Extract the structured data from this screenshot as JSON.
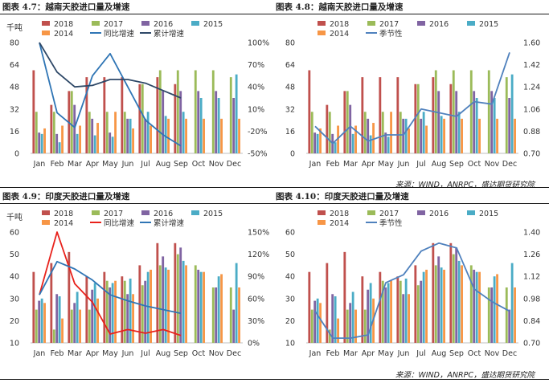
{
  "colors": {
    "y2018": "#c0504d",
    "y2017": "#9bbb59",
    "y2016": "#8064a2",
    "y2015": "#4bacc6",
    "y2014": "#f79646",
    "line_red": "#e8211b",
    "line_navy": "#2e4867",
    "line_blue": "#2f75b5",
    "seasonal": "#4f81bd"
  },
  "panels": {
    "p1": {
      "title": "图表 4.7：越南天胶进口量及增速"
    },
    "p2": {
      "title": "图表 4.8：越南天胶进口量及增速"
    },
    "p3": {
      "title": "图表 4.9：印度天胶进口量及增速"
    },
    "p4": {
      "title": "图表 4.10：印度天胶进口量及增速"
    }
  },
  "sources": {
    "top": "来源：WIND，ANRPC，盛达期货研究院",
    "bottom": "来源：WIND，ANRPC，盛达期货研究院"
  },
  "chart_data": [
    {
      "type": "bar",
      "ylabel": "千吨",
      "ylim": [
        0,
        80
      ],
      "yticks": [
        0,
        16,
        32,
        48,
        64,
        80
      ],
      "y2lim": [
        -50,
        100
      ],
      "y2ticks": [
        "-50%",
        "-20%",
        "10%",
        "40%",
        "70%",
        "100%"
      ],
      "categories": [
        "Jan",
        "Feb",
        "Mar",
        "Apr",
        "May",
        "Jun",
        "Jul",
        "Aug",
        "Sep",
        "Oct",
        "Nov",
        "Dec"
      ],
      "series": [
        {
          "name": "2018",
          "values": [
            60,
            35,
            45,
            55,
            55,
            55,
            50,
            55,
            50,
            null,
            null,
            null
          ]
        },
        {
          "name": "2017",
          "values": [
            30,
            30,
            45,
            30,
            30,
            30,
            50,
            60,
            60,
            60,
            60,
            55
          ]
        },
        {
          "name": "2016",
          "values": [
            15,
            14,
            35,
            25,
            15,
            25,
            25,
            45,
            45,
            45,
            45,
            40
          ]
        },
        {
          "name": "2015",
          "values": [
            14,
            8,
            14,
            13,
            12,
            25,
            30,
            27,
            30,
            40,
            40,
            57
          ]
        },
        {
          "name": "2014",
          "values": [
            18,
            20,
            20,
            22,
            30,
            18,
            20,
            25,
            25,
            25,
            25,
            25
          ]
        }
      ],
      "lines": [
        {
          "name": "同比增速",
          "values": [
            100,
            5,
            -15,
            55,
            85,
            40,
            -5,
            -25,
            -40
          ]
        },
        {
          "name": "累计增速",
          "values": [
            100,
            60,
            40,
            42,
            50,
            50,
            45,
            35,
            25
          ]
        }
      ],
      "legend": [
        {
          "label": "2018",
          "series": "2018"
        },
        {
          "label": "2017",
          "series": "2017"
        },
        {
          "label": "2016",
          "series": "2016"
        },
        {
          "label": "2015",
          "series": "2015"
        },
        {
          "label": "2014",
          "series": "2014"
        },
        {
          "label": "同比增速",
          "line": 0
        },
        {
          "label": "累计增速",
          "line": 1
        }
      ]
    },
    {
      "type": "bar",
      "ylim": [
        0,
        80
      ],
      "y2lim": [
        0.7,
        1.6
      ],
      "y2ticks": [
        "0.70",
        "0.88",
        "1.06",
        "1.24",
        "1.42",
        "1.60"
      ],
      "categories": [
        "Jan",
        "Feb",
        "Mar",
        "Apr",
        "May",
        "Jun",
        "Jul",
        "Aug",
        "Sep",
        "Oct",
        "Nov",
        "Dec"
      ],
      "series": [
        {
          "name": "2018",
          "values": [
            60,
            35,
            45,
            55,
            55,
            55,
            50,
            55,
            50,
            null,
            null,
            null
          ]
        },
        {
          "name": "2017",
          "values": [
            30,
            30,
            45,
            30,
            30,
            30,
            50,
            60,
            60,
            60,
            60,
            55
          ]
        },
        {
          "name": "2016",
          "values": [
            15,
            14,
            35,
            25,
            15,
            25,
            25,
            45,
            45,
            45,
            45,
            40
          ]
        },
        {
          "name": "2015",
          "values": [
            14,
            8,
            14,
            13,
            12,
            25,
            30,
            27,
            30,
            40,
            40,
            57
          ]
        },
        {
          "name": "2014",
          "values": [
            18,
            20,
            20,
            22,
            30,
            18,
            20,
            25,
            25,
            25,
            25,
            25
          ]
        }
      ],
      "lines": [
        {
          "name": "季节性",
          "values": [
            0.92,
            0.78,
            0.92,
            0.8,
            0.85,
            0.85,
            1.06,
            1.03,
            1.0,
            1.12,
            1.1,
            1.52
          ]
        }
      ],
      "legend": [
        {
          "label": "2018",
          "series": "2018"
        },
        {
          "label": "2017",
          "series": "2017"
        },
        {
          "label": "2016",
          "series": "2016"
        },
        {
          "label": "2015",
          "series": "2015"
        },
        {
          "label": "2014",
          "series": "2014"
        },
        {
          "label": "季节性",
          "line": 0
        }
      ]
    },
    {
      "type": "bar",
      "ylabel": "千吨",
      "ylim": [
        10,
        60
      ],
      "yticks": [
        10,
        20,
        30,
        40,
        50,
        60
      ],
      "y2lim": [
        0,
        150
      ],
      "y2ticks": [
        "0%",
        "30%",
        "60%",
        "90%",
        "120%",
        "150%"
      ],
      "categories": [
        "Jan",
        "Feb",
        "Mar",
        "Apr",
        "May",
        "Jun",
        "Jul",
        "Aug",
        "Sep",
        "Oct",
        "Nov",
        "Dec"
      ],
      "series": [
        {
          "name": "2018",
          "values": [
            42,
            46,
            51,
            40,
            42,
            40,
            45,
            55,
            55,
            null,
            null,
            null
          ]
        },
        {
          "name": "2017",
          "values": [
            25,
            16,
            25,
            25,
            38,
            38,
            36,
            45,
            50,
            45,
            35,
            35
          ]
        },
        {
          "name": "2016",
          "values": [
            29,
            32,
            28,
            34,
            35,
            32,
            38,
            49,
            53,
            43,
            35,
            25
          ]
        },
        {
          "name": "2015",
          "values": [
            30,
            31,
            33,
            37,
            37,
            39,
            42,
            44,
            47,
            42,
            40,
            46
          ]
        },
        {
          "name": "2014",
          "values": [
            28,
            21,
            25,
            30,
            38,
            32,
            43,
            43,
            45,
            42,
            41,
            35
          ]
        }
      ],
      "lines": [
        {
          "name": "同比增速",
          "values": [
            65,
            150,
            80,
            55,
            12,
            18,
            13,
            18,
            10
          ]
        },
        {
          "name": "累计增速",
          "values": [
            65,
            110,
            100,
            85,
            65,
            57,
            50,
            45,
            40
          ]
        }
      ],
      "legend": [
        {
          "label": "2018",
          "series": "2018"
        },
        {
          "label": "2017",
          "series": "2017"
        },
        {
          "label": "2016",
          "series": "2016"
        },
        {
          "label": "2015",
          "series": "2015"
        },
        {
          "label": "2014",
          "series": "2014"
        },
        {
          "label": "同比增速",
          "line": 0
        },
        {
          "label": "累计增速",
          "line": 1
        }
      ]
    },
    {
      "type": "bar",
      "ylim": [
        10,
        60
      ],
      "y2lim": [
        0.7,
        1.4
      ],
      "y2ticks": [
        "0.70",
        "0.84",
        "0.98",
        "1.12",
        "1.26",
        "1.40"
      ],
      "categories": [
        "Jan",
        "Feb",
        "Mar",
        "Apr",
        "May",
        "Jun",
        "Jul",
        "Aug",
        "Sep",
        "Oct",
        "Nov",
        "Dec"
      ],
      "series": [
        {
          "name": "2018",
          "values": [
            42,
            46,
            51,
            40,
            42,
            40,
            45,
            55,
            55,
            null,
            null,
            null
          ]
        },
        {
          "name": "2017",
          "values": [
            25,
            16,
            25,
            25,
            38,
            38,
            36,
            45,
            50,
            45,
            35,
            35
          ]
        },
        {
          "name": "2016",
          "values": [
            29,
            32,
            28,
            34,
            35,
            32,
            38,
            49,
            53,
            43,
            35,
            25
          ]
        },
        {
          "name": "2015",
          "values": [
            30,
            31,
            33,
            37,
            37,
            39,
            42,
            44,
            47,
            42,
            40,
            46
          ]
        },
        {
          "name": "2014",
          "values": [
            28,
            21,
            25,
            30,
            38,
            32,
            43,
            43,
            45,
            42,
            41,
            35
          ]
        }
      ],
      "lines": [
        {
          "name": "季节性",
          "values": [
            0.9,
            0.73,
            0.73,
            0.75,
            1.08,
            1.13,
            1.28,
            1.33,
            1.3,
            1.04,
            0.96,
            0.9
          ]
        }
      ],
      "legend": [
        {
          "label": "2018",
          "series": "2018"
        },
        {
          "label": "2017",
          "series": "2017"
        },
        {
          "label": "2016",
          "series": "2016"
        },
        {
          "label": "2015",
          "series": "2015"
        },
        {
          "label": "2014",
          "series": "2014"
        },
        {
          "label": "季节性",
          "line": 0
        }
      ]
    }
  ]
}
